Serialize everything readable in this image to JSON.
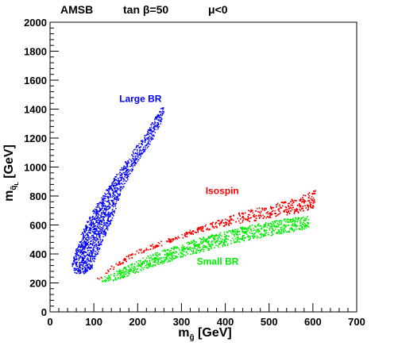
{
  "header": {
    "model": "AMSB",
    "tanbeta": "tan β=50",
    "mu": "μ<0"
  },
  "chart_data": {
    "type": "scatter",
    "title": "",
    "xlabel": "m",
    "xlabel_sub": "g̃",
    "xlabel_unit": " [GeV]",
    "ylabel": "m",
    "ylabel_sub": "q̃",
    "ylabel_subsub": "L",
    "ylabel_unit": " [GeV]",
    "xlim": [
      0,
      700
    ],
    "ylim": [
      0,
      2000
    ],
    "xticks": [
      0,
      100,
      200,
      300,
      400,
      500,
      600,
      700
    ],
    "yticks": [
      0,
      200,
      400,
      600,
      800,
      1000,
      1200,
      1400,
      1600,
      1800,
      2000
    ],
    "grid": false,
    "series": [
      {
        "name": "Large BR",
        "color": "#0000ff",
        "label_at": [
          158,
          1450
        ],
        "region": [
          [
            48,
            320
          ],
          [
            55,
            400
          ],
          [
            70,
            540
          ],
          [
            95,
            700
          ],
          [
            135,
            880
          ],
          [
            180,
            1080
          ],
          [
            220,
            1250
          ],
          [
            250,
            1400
          ],
          [
            260,
            1450
          ],
          [
            258,
            1340
          ],
          [
            232,
            1180
          ],
          [
            190,
            1000
          ],
          [
            160,
            820
          ],
          [
            140,
            630
          ],
          [
            118,
            480
          ],
          [
            95,
            300
          ],
          [
            70,
            255
          ],
          [
            55,
            270
          ]
        ]
      },
      {
        "name": "Isospin",
        "color": "#ff0000",
        "label_at": [
          355,
          815
        ],
        "region": [
          [
            105,
            230
          ],
          [
            130,
            300
          ],
          [
            190,
            420
          ],
          [
            260,
            500
          ],
          [
            340,
            590
          ],
          [
            420,
            680
          ],
          [
            500,
            740
          ],
          [
            570,
            800
          ],
          [
            610,
            860
          ],
          [
            600,
            720
          ],
          [
            570,
            690
          ],
          [
            520,
            660
          ],
          [
            440,
            620
          ],
          [
            360,
            570
          ],
          [
            280,
            490
          ],
          [
            200,
            400
          ],
          [
            140,
            290
          ],
          [
            110,
            225
          ]
        ]
      },
      {
        "name": "Small BR",
        "color": "#00ee00",
        "label_at": [
          335,
          325
        ],
        "region": [
          [
            108,
            225
          ],
          [
            150,
            285
          ],
          [
            210,
            375
          ],
          [
            280,
            455
          ],
          [
            360,
            530
          ],
          [
            440,
            590
          ],
          [
            520,
            640
          ],
          [
            590,
            665
          ],
          [
            590,
            580
          ],
          [
            520,
            540
          ],
          [
            440,
            490
          ],
          [
            360,
            430
          ],
          [
            290,
            370
          ],
          [
            220,
            300
          ],
          [
            160,
            230
          ],
          [
            120,
            205
          ]
        ]
      }
    ]
  }
}
